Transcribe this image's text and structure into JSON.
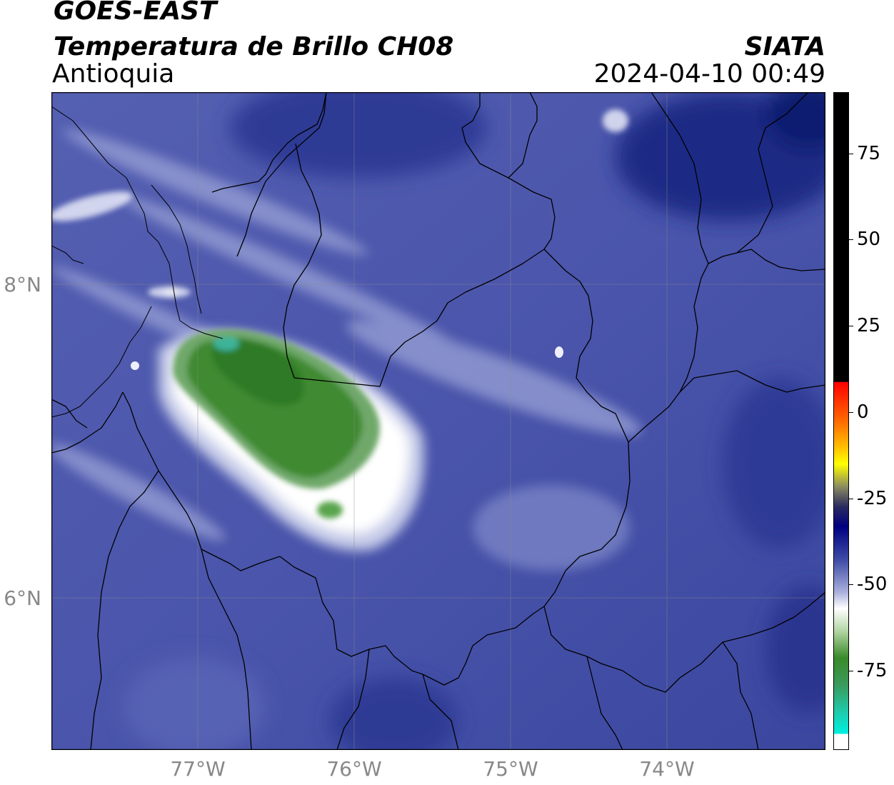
{
  "header": {
    "satellite": "GOES-EAST",
    "product": "Temperatura de Brillo CH08",
    "region": "Antioquia",
    "organization": "SIATA",
    "datetime": "2024-04-10 00:49"
  },
  "map": {
    "lat_ticks": [
      "8°N",
      "6°N"
    ],
    "lon_ticks": [
      "77°W",
      "76°W",
      "75°W",
      "74°W"
    ],
    "lon_range": [
      -77.95,
      -73.0
    ],
    "lat_range": [
      5.0,
      9.2
    ],
    "gridlines": true
  },
  "colorbar": {
    "tick_labels": [
      "75",
      "50",
      "25",
      "0",
      "-25",
      "-50",
      "-75"
    ],
    "tick_values": [
      75,
      50,
      25,
      0,
      -25,
      -50,
      -75
    ],
    "range": [
      -85,
      90
    ],
    "colors": {
      "warm": "#000000",
      "red": "#ff0000",
      "orange": "#ff8800",
      "yellow": "#ffff00",
      "navy": "#000080",
      "blue": "#3d4aa6",
      "white": "#ffffff",
      "green": "#3a8a2a",
      "cyan": "#00e8d8"
    }
  }
}
